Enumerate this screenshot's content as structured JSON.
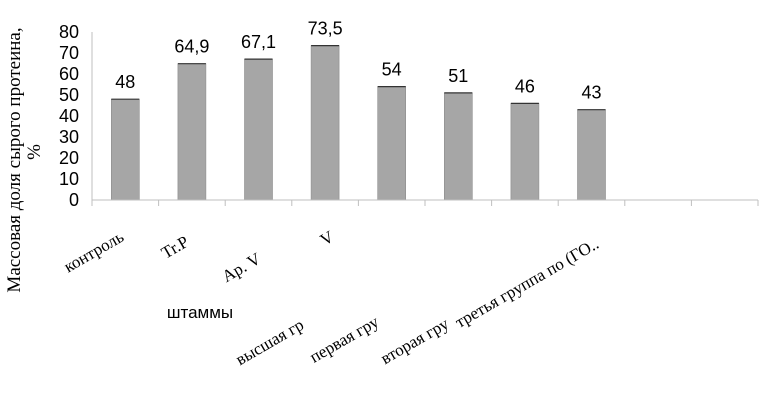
{
  "chart_data": {
    "type": "bar",
    "categories": [
      "контроль",
      "Tr.P",
      "Ap. V",
      "V",
      "высшая гр",
      "первая гру",
      "вторая гру",
      "третья группа по (ГО..",
      "",
      ""
    ],
    "values": [
      48,
      64.9,
      67.1,
      73.5,
      54,
      51,
      46,
      43,
      null,
      null
    ],
    "data_labels": [
      "48",
      "64,9",
      "67,1",
      "73,5",
      "54",
      "51",
      "46",
      "43",
      "",
      ""
    ],
    "ylabel": "Массовая доля сырого протеина, %",
    "xlabel": "штаммы",
    "ylim": [
      0,
      80
    ],
    "yticks": [
      "0",
      "10",
      "20",
      "30",
      "40",
      "50",
      "60",
      "70",
      "80"
    ],
    "grid": false,
    "legend": "none",
    "colors": {
      "bar": "#a6a6a6",
      "bar_stroke": "#8c8c8c",
      "axis": "#bfbfbf",
      "error_bar": "#333333"
    }
  }
}
